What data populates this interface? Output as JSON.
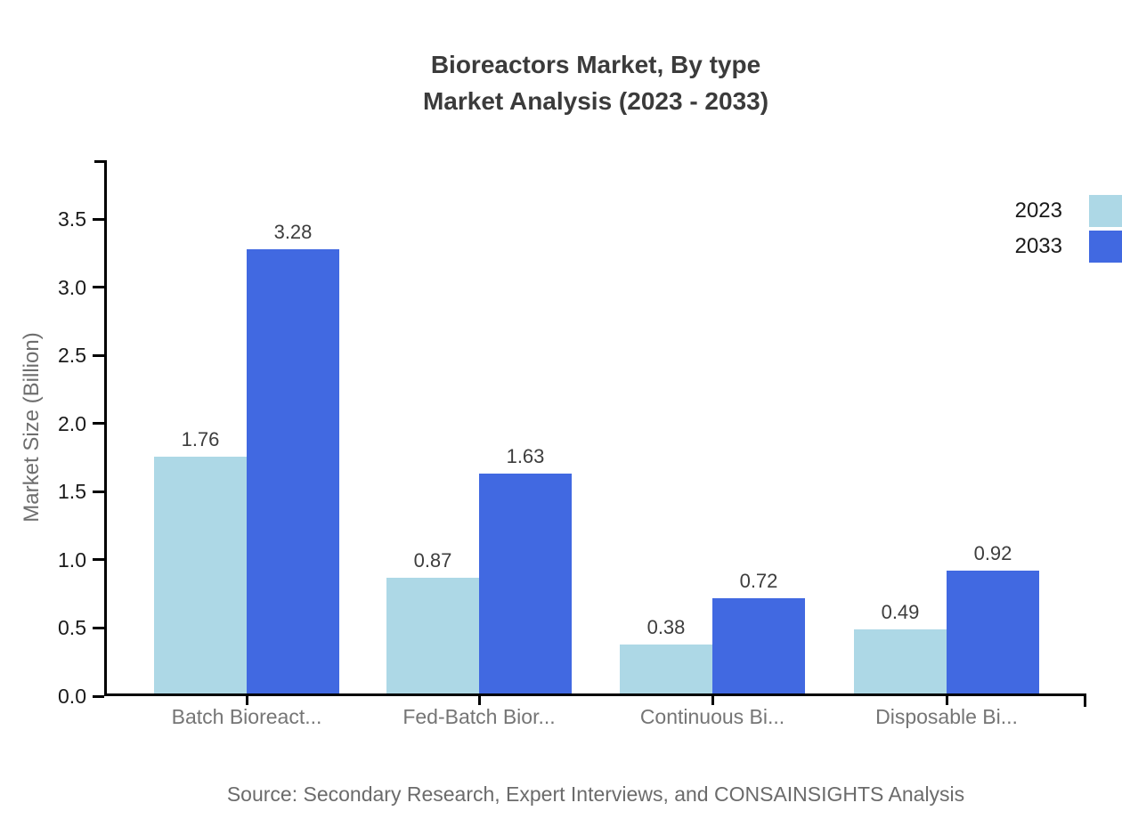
{
  "title": {
    "line1": "Bioreactors Market, By type",
    "line2": "Market Analysis (2023 - 2033)"
  },
  "source": "Source: Secondary Research, Expert Interviews, and CONSAINSIGHTS Analysis",
  "chart_data": {
    "type": "bar",
    "title": "Bioreactors Market, By type Market Analysis (2023 - 2033)",
    "categories": [
      "Batch Bioreact...",
      "Fed-Batch Bior...",
      "Continuous Bi...",
      "Disposable Bi..."
    ],
    "series": [
      {
        "name": "2023",
        "color": "#ADD8E6",
        "values": [
          1.76,
          0.87,
          0.38,
          0.49
        ]
      },
      {
        "name": "2033",
        "color": "#4169E1",
        "values": [
          3.28,
          1.63,
          0.72,
          0.92
        ]
      }
    ],
    "xlabel": "",
    "ylabel": "Market Size (Billion)",
    "y_ticks": [
      0.0,
      0.5,
      1.0,
      1.5,
      2.0,
      2.5,
      3.0,
      3.5
    ],
    "ylim": [
      0,
      3.93
    ],
    "grid": false,
    "legend_position": "top-right",
    "value_labels_shown": true
  }
}
